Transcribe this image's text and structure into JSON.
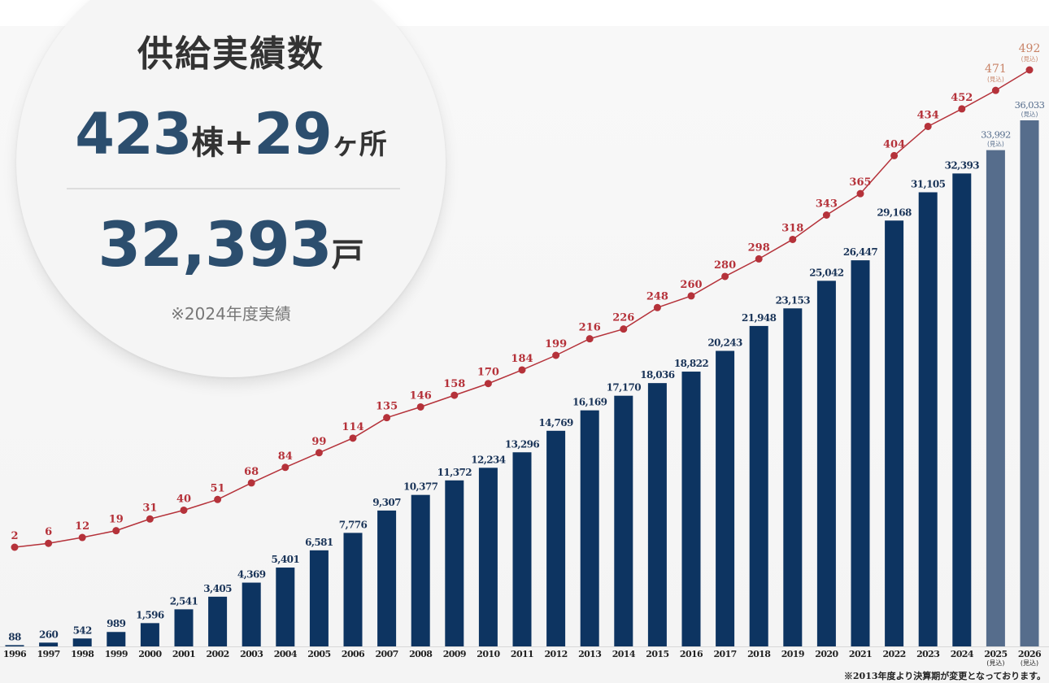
{
  "summary": {
    "title": "供給実績数",
    "buildings": "423",
    "buildings_unit": "棟",
    "plus": "+",
    "locations": "29",
    "locations_unit": "ヶ所",
    "units": "32,393",
    "units_unit": "戸",
    "note": "※2024年度実績"
  },
  "footnote": "※2013年度より決算期が変更となっております。",
  "colors": {
    "bar": "#0d3461",
    "bar_forecast": "#566d8c",
    "line": "#b5323a",
    "line_forecast": "#c98468",
    "bar_label": "#1a3458",
    "summary_number": "#2c4e6e"
  },
  "chart_data": {
    "type": "bar",
    "categories": [
      "1996",
      "1997",
      "1998",
      "1999",
      "2000",
      "2001",
      "2002",
      "2003",
      "2004",
      "2005",
      "2006",
      "2007",
      "2008",
      "2009",
      "2010",
      "2011",
      "2012",
      "2013",
      "2014",
      "2015",
      "2016",
      "2017",
      "2018",
      "2019",
      "2020",
      "2021",
      "2022",
      "2023",
      "2024",
      "2025",
      "2026"
    ],
    "forecast_note": "(見込)",
    "forecast_from_index": 29,
    "series": [
      {
        "chart_type": "bar",
        "values": [
          88,
          260,
          542,
          989,
          1596,
          2541,
          3405,
          4369,
          5401,
          6581,
          7776,
          9307,
          10377,
          11372,
          12234,
          13296,
          14769,
          16169,
          17170,
          18036,
          18822,
          20243,
          21948,
          23153,
          25042,
          26447,
          29168,
          31105,
          32393,
          33992,
          36033
        ],
        "labels": [
          "88",
          "260",
          "542",
          "989",
          "1,596",
          "2,541",
          "3,405",
          "4,369",
          "5,401",
          "6,581",
          "7,776",
          "9,307",
          "10,377",
          "11,372",
          "12,234",
          "13,296",
          "14,769",
          "16,169",
          "17,170",
          "18,036",
          "18,822",
          "20,243",
          "21,948",
          "23,153",
          "25,042",
          "26,447",
          "29,168",
          "31,105",
          "32,393",
          "33,992",
          "36,033"
        ]
      },
      {
        "chart_type": "line",
        "values": [
          2,
          6,
          12,
          19,
          31,
          40,
          51,
          68,
          84,
          99,
          114,
          135,
          146,
          158,
          170,
          184,
          199,
          216,
          226,
          248,
          260,
          280,
          298,
          318,
          343,
          365,
          404,
          434,
          452,
          471,
          492
        ],
        "labels": [
          "2",
          "6",
          "12",
          "19",
          "31",
          "40",
          "51",
          "68",
          "84",
          "99",
          "114",
          "135",
          "146",
          "158",
          "170",
          "184",
          "199",
          "216",
          "226",
          "248",
          "260",
          "280",
          "298",
          "318",
          "343",
          "365",
          "404",
          "434",
          "452",
          "471",
          "492"
        ]
      }
    ],
    "ylim_bar": [
      0,
      36033
    ],
    "ylim_line": [
      0,
      492
    ],
    "grid": false,
    "legend": "none"
  }
}
